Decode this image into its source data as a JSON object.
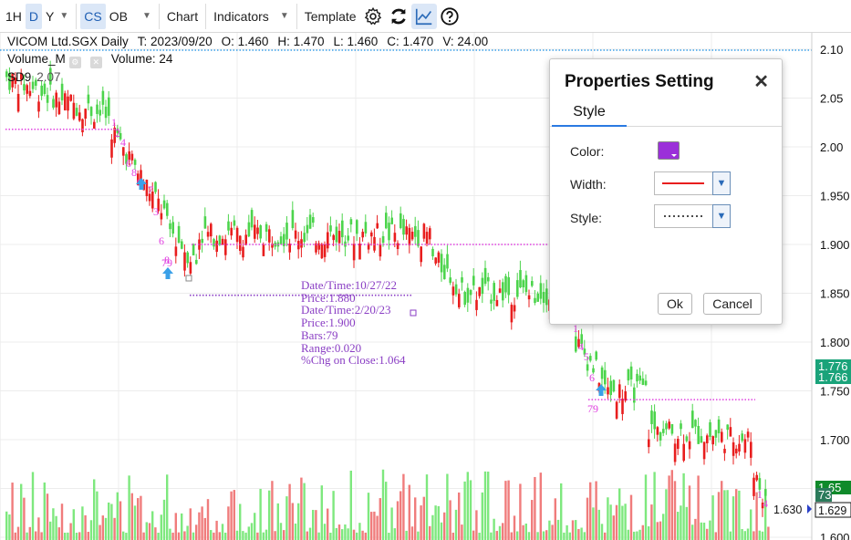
{
  "toolbar": {
    "interval_1h": "1H",
    "interval_d": "D",
    "interval_y": "Y",
    "type_cs": "CS",
    "type_ob": "OB",
    "chart_label": "Chart",
    "indicators_label": "Indicators",
    "template_label": "Template",
    "icons": [
      "gear-icon",
      "refresh-icon",
      "chart-line-icon",
      "help-icon"
    ]
  },
  "legend": {
    "symbol": "VICOM Ltd.SGX Daily",
    "time": "T: 2023/09/20",
    "open": "O: 1.460",
    "high": "H: 1.470",
    "low": "L: 1.460",
    "close": "C: 1.470",
    "volume": "V: 24.00",
    "volume_indicator": "Volume_M",
    "volume_value": "Volume: 24",
    "sd_indicator": "SD9",
    "sd_value": "2.07"
  },
  "annotation": {
    "lines": [
      "Date/Time:10/27/22",
      "Price:1.880",
      "Date/Time:2/20/23",
      "Price:1.900",
      "Bars:79",
      "Range:0.020",
      "%Chg on Close:1.064"
    ]
  },
  "chart_data": {
    "type": "candlestick",
    "price_axis_ticks": [
      "2.10",
      "2.05",
      "2.00",
      "1.950",
      "1.900",
      "1.850",
      "1.800",
      "1.750",
      "1.700",
      "1.650",
      "1.600"
    ],
    "price_labels": {
      "badge_1": "1.776",
      "badge_2": "1.766",
      "badge_3": "1.65",
      "badge_4": "73",
      "last_price": "1.630",
      "current": "1.629"
    },
    "sequential_counts": {
      "count_79_a": "79",
      "count_79_b": "79"
    },
    "colors": {
      "up": "#4cd44c",
      "down": "#e81e1e",
      "marker": "#e040e0",
      "arrow": "#3aa0e8",
      "dotted_top": "#3aa0e8"
    }
  },
  "dialog": {
    "title": "Properties Setting",
    "tab_style": "Style",
    "color_label": "Color:",
    "width_label": "Width:",
    "style_label": "Style:",
    "color_value": "#9b30d9",
    "ok_label": "Ok",
    "cancel_label": "Cancel"
  }
}
